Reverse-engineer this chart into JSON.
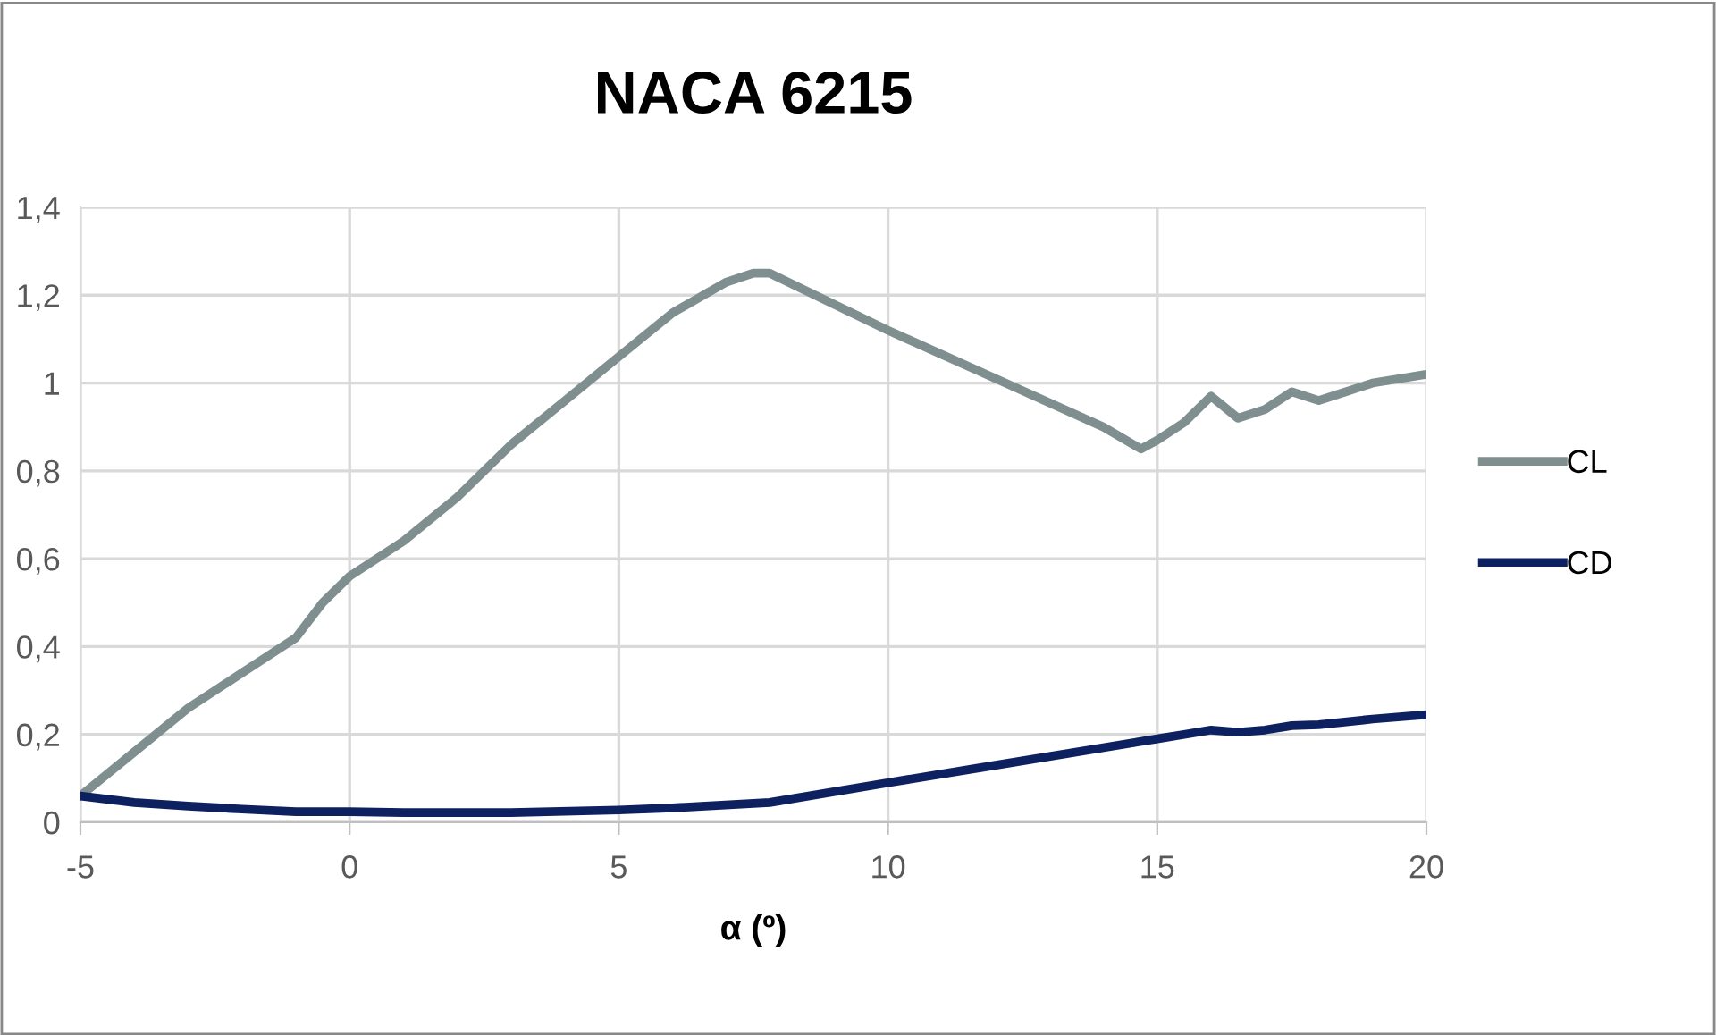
{
  "chart_data": {
    "type": "line",
    "title": "NACA 6215",
    "xlabel": "α (º)",
    "xlim": [
      -5,
      20
    ],
    "xticks": [
      -5,
      0,
      5,
      10,
      15,
      20
    ],
    "ylim": [
      0,
      1.4
    ],
    "yticks": [
      0,
      {
        "value": 0.2,
        "label": "0,2"
      },
      {
        "value": 0.4,
        "label": "0,4"
      },
      {
        "value": 0.6,
        "label": "0,6"
      },
      {
        "value": 0.8,
        "label": "0,8"
      },
      1,
      {
        "value": 1.2,
        "label": "1,2"
      },
      {
        "value": 1.4,
        "label": "1,4"
      }
    ],
    "grid": true,
    "legend": "right",
    "marker": "none",
    "line_style": "solid",
    "series": [
      {
        "name": "CL",
        "color": "#7f8f8f",
        "x": [
          -5,
          -4,
          -3,
          -2,
          -1,
          -0.5,
          0,
          1,
          2,
          3,
          4,
          5,
          6,
          7,
          7.5,
          7.8,
          10,
          12,
          14,
          14.7,
          15,
          15.5,
          16,
          16.5,
          17,
          17.5,
          18,
          18.5,
          19,
          20
        ],
        "values": [
          0.06,
          0.16,
          0.26,
          0.34,
          0.42,
          0.5,
          0.56,
          0.64,
          0.74,
          0.86,
          0.96,
          1.06,
          1.16,
          1.23,
          1.25,
          1.25,
          1.12,
          1.01,
          0.9,
          0.85,
          0.87,
          0.91,
          0.97,
          0.92,
          0.94,
          0.98,
          0.96,
          0.98,
          1.0,
          1.02
        ]
      },
      {
        "name": "CD",
        "color": "#0d2160",
        "x": [
          -5,
          -4,
          -3,
          -2,
          -1,
          0,
          1,
          3,
          5,
          6,
          7.8,
          10,
          12,
          14,
          15,
          15.5,
          16,
          16.5,
          17,
          17.5,
          18,
          19,
          20
        ],
        "values": [
          0.06,
          0.045,
          0.037,
          0.03,
          0.024,
          0.024,
          0.022,
          0.022,
          0.028,
          0.033,
          0.045,
          0.09,
          0.13,
          0.17,
          0.19,
          0.2,
          0.21,
          0.205,
          0.21,
          0.22,
          0.222,
          0.235,
          0.245
        ]
      }
    ]
  }
}
